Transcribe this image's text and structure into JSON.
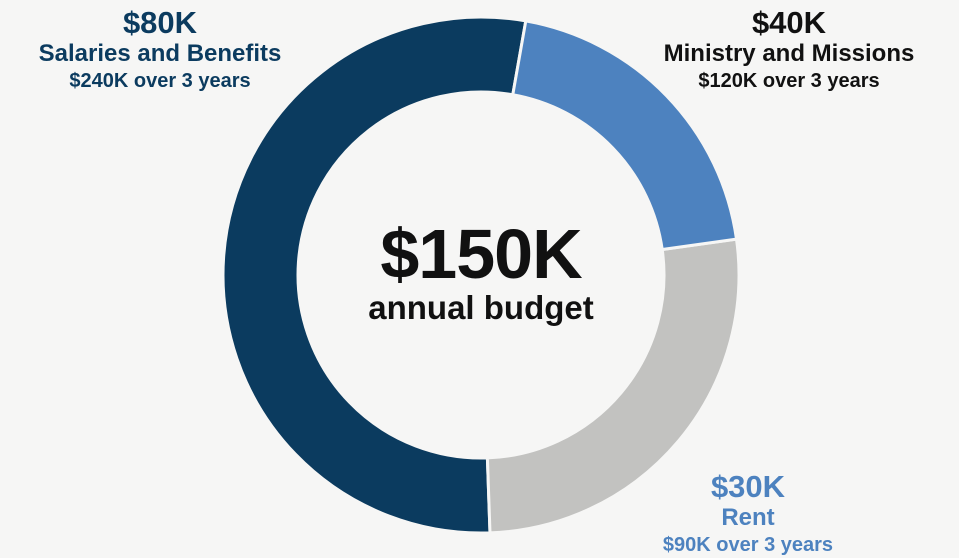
{
  "chart_data": {
    "type": "pie",
    "variant": "donut",
    "center": {
      "value": "$150K",
      "caption": "annual budget"
    },
    "slices": [
      {
        "name": "Salaries and Benefits",
        "value": 80,
        "amount_label": "$80K",
        "total_label": "$240K over 3 years",
        "color": "#0b3b5f"
      },
      {
        "name": "Ministry and Missions",
        "value": 40,
        "amount_label": "$40K",
        "total_label": "$120K over 3 years",
        "color": "#c2c2c0"
      },
      {
        "name": "Rent",
        "value": 30,
        "amount_label": "$30K",
        "total_label": "$90K over 3 years",
        "color": "#4d82bf"
      }
    ],
    "label_colors": [
      "#0b3b5f",
      "#111111",
      "#4d82bf"
    ],
    "slice_order": "clockwise from top, salaries first",
    "legend": "none (direct labels)"
  }
}
